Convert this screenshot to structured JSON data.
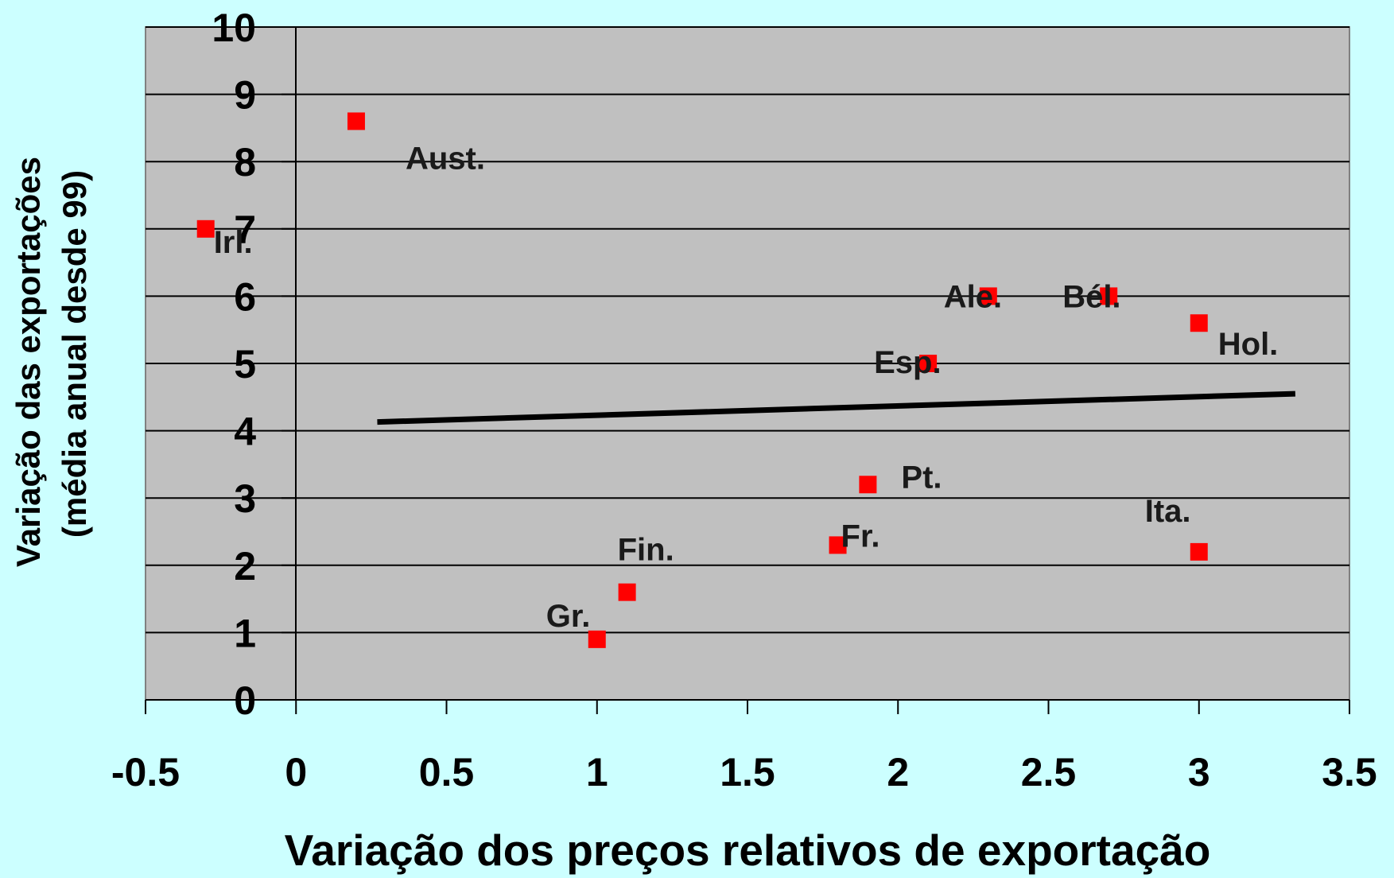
{
  "chart_data": {
    "type": "scatter",
    "title": "",
    "xlabel": "Variação dos preços relativos de exportação",
    "ylabel": "Variação das exportações",
    "ylabel_sub": "(média anual desde 99)",
    "xlim": [
      -0.5,
      3.5
    ],
    "ylim": [
      0,
      10
    ],
    "x_ticks": [
      "-0.5",
      "0",
      "0.5",
      "1",
      "1.5",
      "2",
      "2.5",
      "3",
      "3.5"
    ],
    "y_ticks": [
      "0",
      "1",
      "2",
      "3",
      "4",
      "5",
      "6",
      "7",
      "8",
      "9",
      "10"
    ],
    "grid": "horizontal",
    "legend": "none",
    "points": [
      {
        "label": "Aust.",
        "x": 0.2,
        "y": 8.6
      },
      {
        "label": "Irl.",
        "x": -0.3,
        "y": 7.0
      },
      {
        "label": "Ale.",
        "x": 2.3,
        "y": 6.0
      },
      {
        "label": "Bél.",
        "x": 2.7,
        "y": 6.0
      },
      {
        "label": "Hol.",
        "x": 3.0,
        "y": 5.6
      },
      {
        "label": "Esp.",
        "x": 2.1,
        "y": 5.0
      },
      {
        "label": "Pt.",
        "x": 1.9,
        "y": 3.2
      },
      {
        "label": "Ita.",
        "x": 3.0,
        "y": 2.2
      },
      {
        "label": "Fr.",
        "x": 1.8,
        "y": 2.3
      },
      {
        "label": "Fin.",
        "x": 1.1,
        "y": 1.6
      },
      {
        "label": "Gr.",
        "x": 1.0,
        "y": 0.9
      }
    ],
    "trendline": {
      "x": [
        0.27,
        3.32
      ],
      "y": [
        4.13,
        4.55
      ]
    },
    "colors": {
      "page_background": "#ccffff",
      "plot_background": "#c0c0c0",
      "marker": "#ff0000",
      "trendline": "#000000",
      "gridline": "#000000"
    }
  }
}
